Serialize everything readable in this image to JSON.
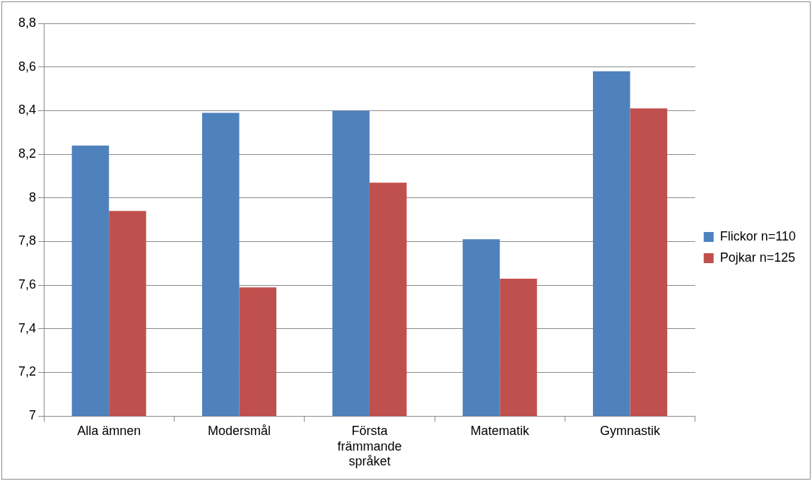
{
  "chart_data": {
    "type": "bar",
    "categories": [
      "Alla ämnen",
      "Modersmål",
      "Första främmande språket",
      "Matematik",
      "Gymnastik"
    ],
    "series": [
      {
        "name": "Flickor n=110",
        "color": "#4f81bd",
        "values": [
          8.24,
          8.39,
          8.4,
          7.81,
          8.58
        ]
      },
      {
        "name": "Pojkar n=125",
        "color": "#c0504d",
        "values": [
          7.94,
          7.59,
          8.07,
          7.63,
          8.41
        ]
      }
    ],
    "ylim": [
      7,
      8.8
    ],
    "yticks": [
      7,
      {
        "value": 7.2,
        "label": "7,2"
      },
      {
        "value": 7.4,
        "label": "7,4"
      },
      {
        "value": 7.6,
        "label": "7,6"
      },
      {
        "value": 7.8,
        "label": "7,8"
      },
      8,
      {
        "value": 8.2,
        "label": "8,2"
      },
      {
        "value": 8.4,
        "label": "8,4"
      },
      {
        "value": 8.6,
        "label": "8,6"
      },
      {
        "value": 8.8,
        "label": "8,8"
      }
    ],
    "grid": "y",
    "legend": "right"
  }
}
